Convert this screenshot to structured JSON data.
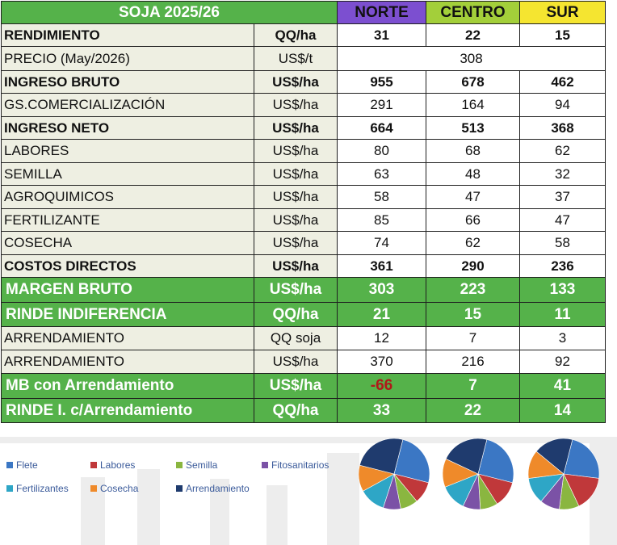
{
  "table": {
    "title": "SOJA 2025/26",
    "regions": [
      "NORTE",
      "CENTRO",
      "SUR"
    ],
    "rows": [
      {
        "label": "RENDIMIENTO",
        "unit": "QQ/ha",
        "values": [
          "31",
          "22",
          "15"
        ],
        "style": "bold"
      },
      {
        "label": "PRECIO (May/2026)",
        "unit": "US$/t",
        "merged_value": "308",
        "style": "normal"
      },
      {
        "label": "INGRESO BRUTO",
        "unit": "US$/ha",
        "values": [
          "955",
          "678",
          "462"
        ],
        "style": "bold"
      },
      {
        "label": "GS.COMERCIALIZACIÓN",
        "unit": "US$/ha",
        "values": [
          "291",
          "164",
          "94"
        ],
        "style": "normal"
      },
      {
        "label": "INGRESO NETO",
        "unit": "US$/ha",
        "values": [
          "664",
          "513",
          "368"
        ],
        "style": "bold"
      },
      {
        "label": "LABORES",
        "unit": "US$/ha",
        "values": [
          "80",
          "68",
          "62"
        ],
        "style": "normal"
      },
      {
        "label": "SEMILLA",
        "unit": "US$/ha",
        "values": [
          "63",
          "48",
          "32"
        ],
        "style": "normal"
      },
      {
        "label": "AGROQUIMICOS",
        "unit": "US$/ha",
        "values": [
          "58",
          "47",
          "37"
        ],
        "style": "normal"
      },
      {
        "label": "FERTILIZANTE",
        "unit": "US$/ha",
        "values": [
          "85",
          "66",
          "47"
        ],
        "style": "normal"
      },
      {
        "label": "COSECHA",
        "unit": "US$/ha",
        "values": [
          "74",
          "62",
          "58"
        ],
        "style": "normal"
      },
      {
        "label": "COSTOS DIRECTOS",
        "unit": "US$/ha",
        "values": [
          "361",
          "290",
          "236"
        ],
        "style": "bold"
      },
      {
        "label": "MARGEN BRUTO",
        "unit": "US$/ha",
        "values": [
          "303",
          "223",
          "133"
        ],
        "style": "green"
      },
      {
        "label": "RINDE INDIFERENCIA",
        "unit": "QQ/ha",
        "values": [
          "21",
          "15",
          "11"
        ],
        "style": "green"
      },
      {
        "label": "ARRENDAMIENTO",
        "unit": "QQ soja",
        "values": [
          "12",
          "7",
          "3"
        ],
        "style": "normal"
      },
      {
        "label": "ARRENDAMIENTO",
        "unit": "US$/ha",
        "values": [
          "370",
          "216",
          "92"
        ],
        "style": "normal"
      },
      {
        "label": "MB con Arrendamiento",
        "unit": "US$/ha",
        "values": [
          "-66",
          "7",
          "41"
        ],
        "style": "green",
        "negative_index": 0
      },
      {
        "label": "RINDE I. c/Arrendamiento",
        "unit": "QQ/ha",
        "values": [
          "33",
          "22",
          "14"
        ],
        "style": "green"
      }
    ],
    "colors": {
      "green": "#55b24a",
      "label_bg": "#eeefe2",
      "norte": "#7c4fd0",
      "centro": "#a3cf3a",
      "sur": "#f5e530",
      "negative": "#b01818"
    }
  },
  "legend": {
    "items": [
      {
        "label": "Flete",
        "color": "#3b77c4"
      },
      {
        "label": "Labores",
        "color": "#c0383a"
      },
      {
        "label": "Semilla",
        "color": "#8ab640"
      },
      {
        "label": "Fitosanitarios",
        "color": "#7b52a6"
      },
      {
        "label": "Fertilizantes",
        "color": "#2ea6c6"
      },
      {
        "label": "Cosecha",
        "color": "#ef8a2a"
      },
      {
        "label": "Arrendamiento",
        "color": "#1f3b6e"
      }
    ]
  },
  "chart_data": {
    "type": "pie",
    "pies": [
      {
        "slices": [
          25,
          10,
          8,
          8,
          12,
          12,
          25
        ]
      },
      {
        "slices": [
          25,
          12,
          8,
          8,
          12,
          13,
          22
        ]
      },
      {
        "slices": [
          23,
          16,
          9,
          9,
          12,
          13,
          18
        ]
      }
    ]
  }
}
